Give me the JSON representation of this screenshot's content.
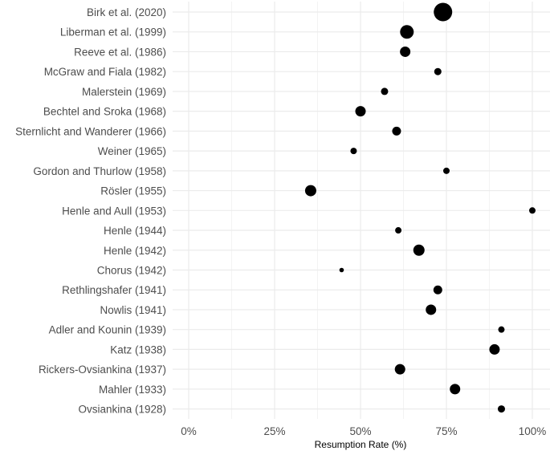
{
  "chart_data": {
    "type": "scatter",
    "title": "",
    "xlabel": "Resumption Rate (%)",
    "ylabel": "",
    "xlim": [
      0,
      100
    ],
    "x_ticks": [
      0,
      25,
      50,
      75,
      100
    ],
    "x_tick_labels": [
      "0%",
      "25%",
      "50%",
      "75%",
      "100%"
    ],
    "grid": true,
    "legend": "none",
    "point_color": "#000000",
    "points": [
      {
        "study": "Birk et al. (2020)",
        "x": 74,
        "size": 11.5
      },
      {
        "study": "Liberman et al. (1999)",
        "x": 63.5,
        "size": 8.5
      },
      {
        "study": "Reeve et al. (1986)",
        "x": 63,
        "size": 6.5
      },
      {
        "study": "McGraw and Fiala (1982)",
        "x": 72.5,
        "size": 4.5
      },
      {
        "study": "Malerstein (1969)",
        "x": 57,
        "size": 4.5
      },
      {
        "study": "Bechtel and Sroka (1968)",
        "x": 50,
        "size": 6.5
      },
      {
        "study": "Sternlicht and Wanderer  (1966)",
        "x": 60.5,
        "size": 5.5
      },
      {
        "study": "Weiner (1965)",
        "x": 48,
        "size": 4
      },
      {
        "study": "Gordon and Thurlow (1958)",
        "x": 75,
        "size": 4
      },
      {
        "study": "Rösler (1955)",
        "x": 35.5,
        "size": 7
      },
      {
        "study": "Henle and Aull  (1953)",
        "x": 100,
        "size": 4
      },
      {
        "study": "Henle (1944)",
        "x": 61,
        "size": 4
      },
      {
        "study": "Henle (1942)",
        "x": 67,
        "size": 7
      },
      {
        "study": "Chorus (1942)",
        "x": 44.5,
        "size": 2.8
      },
      {
        "study": "Rethlingshafer (1941)",
        "x": 72.5,
        "size": 5.5
      },
      {
        "study": "Nowlis  (1941)",
        "x": 70.5,
        "size": 6.5
      },
      {
        "study": "Adler and Kounin (1939)",
        "x": 91,
        "size": 4
      },
      {
        "study": "Katz (1938)",
        "x": 89,
        "size": 6.5
      },
      {
        "study": "Rickers-Ovsiankina (1937)",
        "x": 61.5,
        "size": 6.5
      },
      {
        "study": "Mahler (1933)",
        "x": 77.5,
        "size": 6.5
      },
      {
        "study": "Ovsiankina (1928)",
        "x": 91,
        "size": 4.5
      }
    ]
  }
}
